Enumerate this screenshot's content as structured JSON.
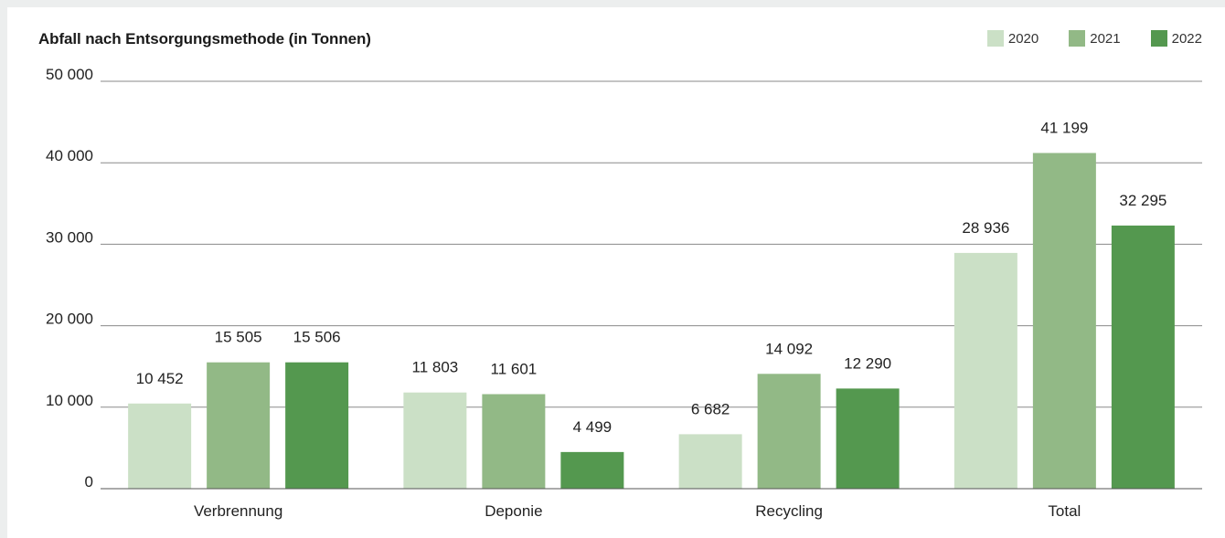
{
  "chart_data": {
    "type": "bar",
    "title": "Abfall nach Entsorgungsmethode (in Tonnen)",
    "xlabel": "",
    "ylabel": "",
    "categories": [
      "Verbrennung",
      "Deponie",
      "Recycling",
      "Total"
    ],
    "series": [
      {
        "name": "2020",
        "color": "#cbe0c6",
        "values": [
          10452,
          11803,
          6682,
          28936
        ],
        "labels": [
          "10 452",
          "11 803",
          "6 682",
          "28 936"
        ]
      },
      {
        "name": "2021",
        "color": "#92b986",
        "values": [
          15505,
          11601,
          14092,
          41199
        ],
        "labels": [
          "15 505",
          "11 601",
          "14 092",
          "41 199"
        ]
      },
      {
        "name": "2022",
        "color": "#54984f",
        "values": [
          15506,
          4499,
          12290,
          32295
        ],
        "labels": [
          "15 506",
          "4 499",
          "12 290",
          "32 295"
        ]
      }
    ],
    "ylim": [
      0,
      50000
    ],
    "yticks": [
      0,
      10000,
      20000,
      30000,
      40000,
      50000
    ],
    "ytick_labels": [
      "0",
      "10 000",
      "20 000",
      "30 000",
      "40 000",
      "50 000"
    ],
    "grid": true,
    "legend_position": "top-right"
  }
}
